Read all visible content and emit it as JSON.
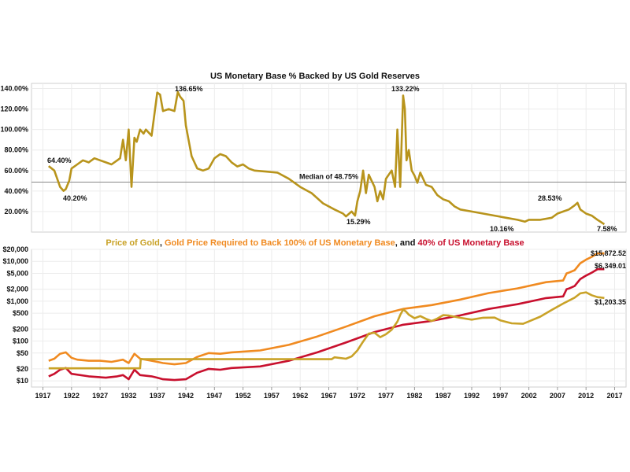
{
  "chart_data": [
    {
      "type": "line",
      "title": "US Monetary Base % Backed by US Gold Reserves",
      "ylim": [
        0,
        145
      ],
      "y_ticks": [
        "20.00%",
        "40.00%",
        "60.00%",
        "80.00%",
        "100.00%",
        "120.00%",
        "140.00%"
      ],
      "grid": true,
      "colors": {
        "series": "#b8941c",
        "median": "#888888"
      },
      "median": {
        "value": 48.75,
        "label": "Median of 48.75%"
      },
      "series": [
        {
          "x": [
            1918,
            1919,
            1920,
            1920.6,
            1921,
            1921.6,
            1922,
            1923,
            1924,
            1925,
            1926,
            1927,
            1928,
            1929,
            1930,
            1930.5,
            1931,
            1931.5,
            1932,
            1932.5,
            1933,
            1933.4,
            1934,
            1934.6,
            1935,
            1936,
            1937,
            1937.5,
            1938,
            1939,
            1940,
            1940.6,
            1941,
            1941.6,
            1942,
            1943,
            1944,
            1945,
            1946,
            1947,
            1948,
            1949,
            1950,
            1951,
            1952,
            1953,
            1954,
            1956,
            1958,
            1960,
            1962,
            1964,
            1966,
            1968,
            1969.5,
            1970,
            1971,
            1971.6,
            1972,
            1972.5,
            1973,
            1973.5,
            1974,
            1974.5,
            1975,
            1975.5,
            1976,
            1976.5,
            1977,
            1977.5,
            1978,
            1978.6,
            1979,
            1979.5,
            1980,
            1980.3,
            1980.6,
            1981,
            1981.5,
            1982,
            1982.5,
            1983,
            1984,
            1985,
            1986,
            1987,
            1988,
            1989,
            1990,
            1992,
            1994,
            1996,
            1998,
            2000,
            2001.3,
            2002,
            2004,
            2006,
            2007,
            2008,
            2009,
            2010,
            2010.5,
            2011,
            2012,
            2013,
            2014,
            2015.2
          ],
          "y": [
            64.4,
            60,
            44,
            40.2,
            42,
            50,
            62,
            66,
            70,
            68,
            72,
            70,
            68,
            66,
            70,
            72,
            90,
            70,
            100,
            44,
            92,
            88,
            100,
            96,
            100,
            94,
            136,
            134,
            118,
            120,
            118,
            136.65,
            132,
            128,
            104,
            74,
            62,
            60,
            62,
            72,
            76,
            74,
            68,
            64,
            66,
            62,
            60,
            59,
            58,
            52,
            44,
            38,
            28,
            22,
            18,
            15.29,
            20,
            16,
            30,
            40,
            60,
            38,
            56,
            50,
            44,
            30,
            40,
            32,
            52,
            56,
            60,
            44,
            100,
            44,
            133.22,
            120,
            70,
            80,
            60,
            55,
            48,
            58,
            46,
            44,
            36,
            32,
            30,
            25,
            22,
            20,
            18,
            16,
            14,
            12,
            10.16,
            12,
            12,
            14,
            18,
            20,
            22,
            26,
            28.53,
            22,
            18,
            16,
            12,
            7.58
          ]
        }
      ],
      "annotations": [
        "64.40%",
        "40.20%",
        "136.65%",
        "15.29%",
        "133.22%",
        "10.16%",
        "28.53%",
        "7.58%"
      ]
    },
    {
      "type": "line",
      "title_parts": [
        {
          "text": "Price of Gold",
          "color": "#c9a227"
        },
        {
          "text": ", ",
          "color": "#111111"
        },
        {
          "text": "Gold Price Required to Back 100% of US Monetary Base",
          "color": "#f08a20"
        },
        {
          "text": ", and ",
          "color": "#111111"
        },
        {
          "text": "40% of US Monetary Base",
          "color": "#c8102e"
        }
      ],
      "y_scale": "log",
      "ylim": [
        7,
        20000
      ],
      "y_ticks": [
        {
          "value": 10,
          "label": "$10"
        },
        {
          "value": 20,
          "label": "$20"
        },
        {
          "value": 50,
          "label": "$50"
        },
        {
          "value": 100,
          "label": "$100"
        },
        {
          "value": 200,
          "label": "$200"
        },
        {
          "value": 500,
          "label": "$500"
        },
        {
          "value": 1000,
          "label": "$1,000"
        },
        {
          "value": 2000,
          "label": "$2,000"
        },
        {
          "value": 5000,
          "label": "$5,000"
        },
        {
          "value": 10000,
          "label": "$10,000"
        },
        {
          "value": 20000,
          "label": "$20,000"
        }
      ],
      "x_ticks": [
        "1917",
        "1922",
        "1927",
        "1932",
        "1937",
        "1942",
        "1947",
        "1952",
        "1957",
        "1962",
        "1967",
        "1972",
        "1977",
        "1982",
        "1987",
        "1992",
        "1997",
        "2002",
        "2007",
        "2012",
        "2017"
      ],
      "xlim": [
        1915,
        2019
      ],
      "grid": true,
      "series": [
        {
          "name": "Price of Gold",
          "color": "#c9a227",
          "x": [
            1918,
            1934,
            1934.1,
            1967.5,
            1968,
            1970,
            1971,
            1972,
            1973,
            1974,
            1975,
            1976,
            1977,
            1978,
            1979,
            1979.5,
            1980,
            1980.5,
            1981,
            1982,
            1983,
            1984,
            1985,
            1986,
            1987,
            1988,
            1990,
            1992,
            1994,
            1996,
            1997,
            1999,
            2001,
            2002,
            2004,
            2006,
            2008,
            2010,
            2011,
            2012,
            2013,
            2014,
            2015.2
          ],
          "y": [
            20.67,
            20.67,
            35,
            35,
            39,
            36,
            41,
            58,
            97,
            154,
            161,
            125,
            148,
            193,
            306,
            450,
            615,
            550,
            460,
            375,
            424,
            360,
            317,
            368,
            447,
            437,
            383,
            344,
            384,
            388,
            331,
            279,
            271,
            310,
            409,
            603,
            872,
            1224,
            1571,
            1669,
            1411,
            1266,
            1203.35
          ]
        },
        {
          "name": "Gold Price Required to Back 100% of US Monetary Base",
          "color": "#f08a20",
          "x": [
            1918,
            1919,
            1920,
            1921,
            1922,
            1923,
            1925,
            1927,
            1929,
            1930,
            1931,
            1932,
            1933,
            1934,
            1936,
            1937,
            1938,
            1940,
            1942,
            1944,
            1946,
            1948,
            1950,
            1955,
            1960,
            1965,
            1970,
            1975,
            1980,
            1985,
            1990,
            1995,
            2000,
            2005,
            2008,
            2008.6,
            2009,
            2010,
            2011,
            2012,
            2013,
            2014,
            2015.2
          ],
          "y": [
            32,
            36,
            48,
            52,
            38,
            34,
            32,
            32,
            30,
            32,
            34,
            28,
            48,
            36,
            32,
            30,
            28,
            26,
            28,
            40,
            50,
            48,
            52,
            58,
            80,
            130,
            230,
            420,
            640,
            800,
            1100,
            1600,
            2100,
            3000,
            3300,
            5000,
            5200,
            6000,
            9000,
            11000,
            13000,
            15872.52,
            15872.52
          ]
        },
        {
          "name": "40% of US Monetary Base",
          "color": "#c8102e",
          "x": [
            1918,
            1919,
            1920,
            1921,
            1922,
            1925,
            1928,
            1930,
            1931,
            1932,
            1933,
            1934,
            1936,
            1937,
            1938,
            1940,
            1942,
            1944,
            1946,
            1948,
            1950,
            1955,
            1960,
            1965,
            1970,
            1975,
            1980,
            1985,
            1990,
            1995,
            2000,
            2005,
            2008,
            2008.6,
            2009,
            2010,
            2011,
            2012,
            2013,
            2014,
            2015.2
          ],
          "y": [
            13,
            15,
            19,
            21,
            15,
            13,
            12,
            13,
            14,
            11,
            19,
            14,
            13,
            12,
            11,
            10.5,
            11,
            16,
            20,
            19,
            21,
            23,
            32,
            52,
            92,
            168,
            256,
            320,
            440,
            640,
            840,
            1200,
            1320,
            2000,
            2080,
            2400,
            3600,
            4400,
            5200,
            6349.01,
            6349.01
          ]
        }
      ],
      "annotations": [
        "$15,872.52",
        "$6,349.01",
        "$1,203.35"
      ]
    }
  ]
}
